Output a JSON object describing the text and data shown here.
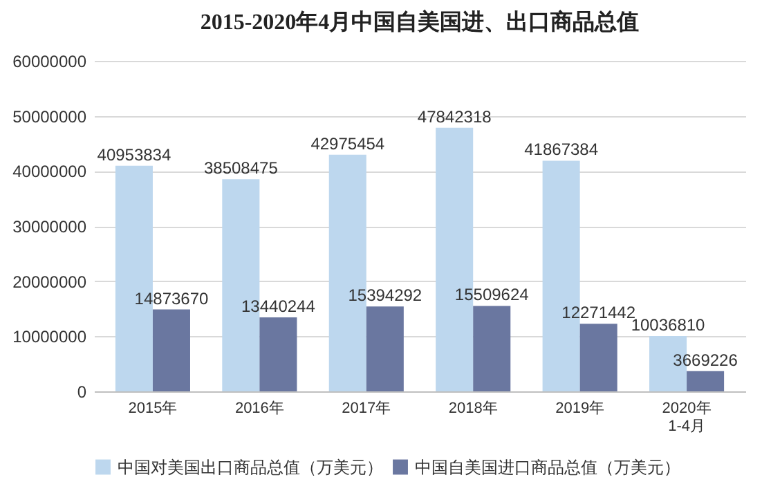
{
  "chart_data": {
    "type": "bar",
    "title": "2015-2020年4月中国自美国进、出口商品总值",
    "categories": [
      "2015年",
      "2016年",
      "2017年",
      "2018年",
      "2019年",
      "2020年\n1-4月"
    ],
    "series": [
      {
        "name": "中国对美国出口商品总值（万美元）",
        "color": "#bdd7ee",
        "values": [
          40953834,
          38508475,
          42975454,
          47842318,
          41867384,
          10036810
        ]
      },
      {
        "name": "中国自美国进口商品总值（万美元）",
        "color": "#6a77a0",
        "values": [
          14873670,
          13440244,
          15394292,
          15509624,
          12271442,
          3669226
        ]
      }
    ],
    "ylim": [
      0,
      60000000
    ],
    "yticks": [
      0,
      10000000,
      20000000,
      30000000,
      40000000,
      50000000,
      60000000
    ],
    "grid": "y",
    "legend": "bottom",
    "data_labels": true
  }
}
